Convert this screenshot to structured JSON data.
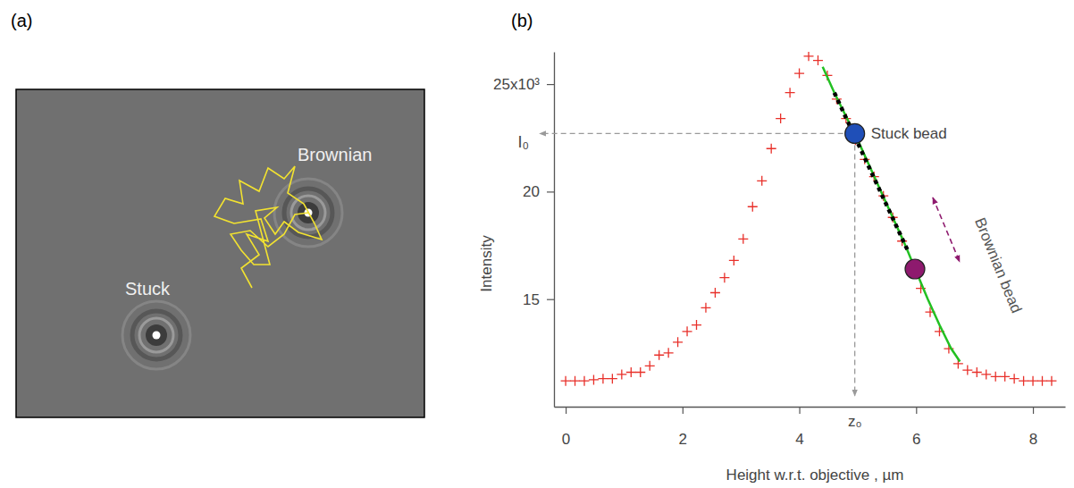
{
  "image": {
    "label": "(a)",
    "annotations": [
      "Stuck",
      "Brownian"
    ]
  },
  "chart_data": {
    "type": "scatter",
    "panel_label": "(b)",
    "x_label": "Height w.r.t. objective , µm",
    "y_label": "Intensity",
    "xlim": [
      -0.2,
      8.55
    ],
    "ylim": [
      10000,
      26500
    ],
    "xticks": [
      0,
      2,
      4,
      6,
      8
    ],
    "yticks": [
      {
        "value": 25000,
        "label": "25x10³"
      },
      {
        "value": 20000,
        "label": "20"
      },
      {
        "value": 15000,
        "label": "15"
      }
    ],
    "series": [
      {
        "type": "scatter",
        "marker": "plus",
        "color": "#e8302a",
        "x": [
          0,
          0.16,
          0.32,
          0.48,
          0.64,
          0.8,
          0.96,
          1.12,
          1.28,
          1.44,
          1.6,
          1.76,
          1.92,
          2.08,
          2.24,
          2.4,
          2.56,
          2.72,
          2.88,
          3.04,
          3.2,
          3.36,
          3.52,
          3.68,
          3.84,
          4.0,
          4.16,
          4.32,
          4.48,
          4.64,
          4.8,
          4.96,
          5.12,
          5.28,
          5.44,
          5.6,
          5.76,
          5.92,
          6.08,
          6.24,
          6.4,
          6.56,
          6.72,
          6.88,
          7.04,
          7.2,
          7.36,
          7.52,
          7.68,
          7.84,
          8.0,
          8.16,
          8.32
        ],
        "values": [
          11200,
          11200,
          11200,
          11250,
          11300,
          11300,
          11500,
          11600,
          11600,
          11900,
          12400,
          12500,
          13000,
          13500,
          13800,
          14600,
          15300,
          16000,
          16800,
          17800,
          19300,
          20500,
          22000,
          23400,
          24600,
          25500,
          26300,
          26100,
          25400,
          24300,
          23400,
          22400,
          21500,
          20700,
          19800,
          18800,
          17700,
          16600,
          15500,
          14400,
          13500,
          12700,
          12000,
          11700,
          11600,
          11500,
          11400,
          11400,
          11300,
          11200,
          11200,
          11200,
          11200
        ]
      },
      {
        "type": "line",
        "line_style": "solid",
        "color": "#22c022",
        "x": [
          4.4,
          4.6,
          4.8,
          5.0,
          5.2,
          5.4,
          5.6,
          5.8,
          6.0,
          6.2,
          6.4,
          6.6,
          6.75
        ],
        "values": [
          25800,
          24600,
          23500,
          22400,
          21200,
          20000,
          18800,
          17600,
          16300,
          15000,
          13800,
          12700,
          12100
        ]
      },
      {
        "type": "line",
        "line_style": "dotted",
        "color": "#000000",
        "x": [
          4.6,
          5.85
        ],
        "values": [
          24600,
          17300
        ]
      }
    ],
    "annotations": [
      {
        "text": "Stuck bead",
        "x": 4.95,
        "y": 22700,
        "color": "#1f4fb8",
        "marker": "circle",
        "x_label": "z₀",
        "y_label": "I₀"
      },
      {
        "text": "Brownian bead",
        "x": 5.98,
        "y": 16400,
        "color": "#8e1a6e",
        "marker": "circle"
      }
    ]
  }
}
